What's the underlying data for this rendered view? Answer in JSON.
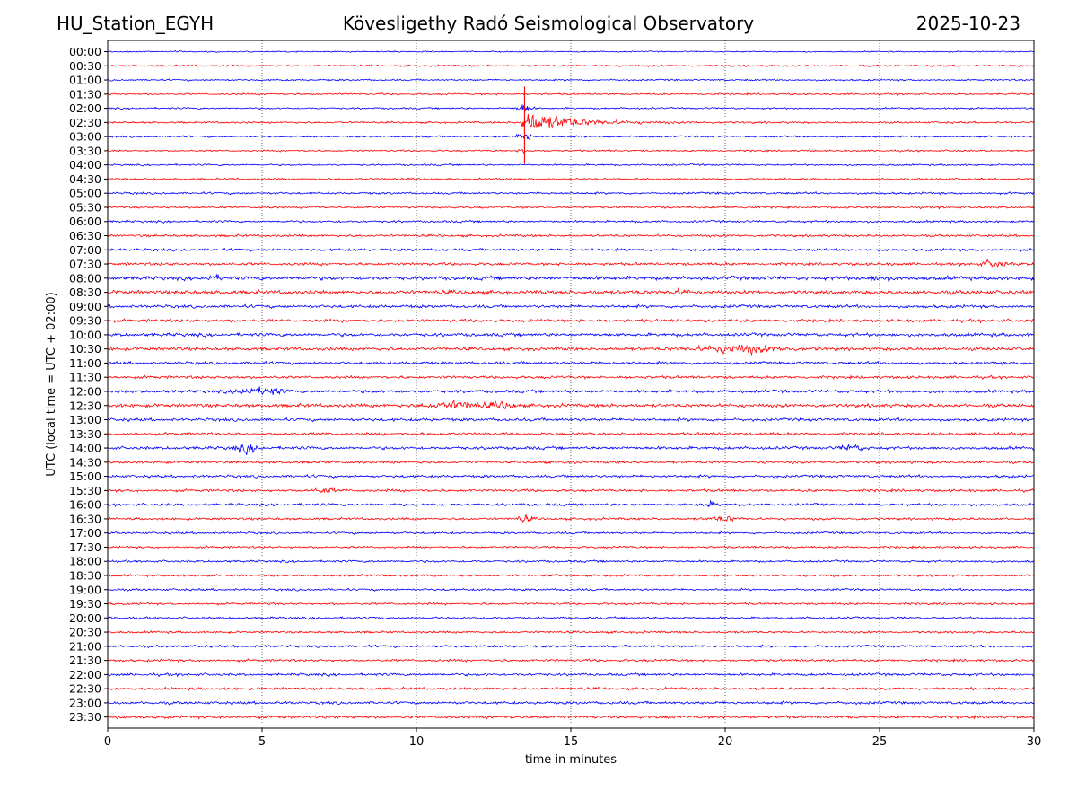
{
  "chart_data": {
    "type": "line",
    "station": "HU_Station_EGYH",
    "title": "Kövesligethy Radó Seismological Observatory",
    "date": "2025-10-23",
    "xlabel": "time in minutes",
    "ylabel": "UTC (local time = UTC + 02:00)",
    "xlim": [
      0,
      30
    ],
    "x_ticks": [
      0,
      5,
      10,
      15,
      20,
      25,
      30
    ],
    "grid": "vertical dotted at each x tick",
    "line_colors": [
      "#0000ff",
      "#ff0000"
    ],
    "row_labels": [
      "00:00",
      "00:30",
      "01:00",
      "01:30",
      "02:00",
      "02:30",
      "03:00",
      "03:30",
      "04:00",
      "04:30",
      "05:00",
      "05:30",
      "06:00",
      "06:30",
      "07:00",
      "07:30",
      "08:00",
      "08:30",
      "09:00",
      "09:30",
      "10:00",
      "10:30",
      "11:00",
      "11:30",
      "12:00",
      "12:30",
      "13:00",
      "13:30",
      "14:00",
      "14:30",
      "15:00",
      "15:30",
      "16:00",
      "16:30",
      "17:00",
      "17:30",
      "18:00",
      "18:30",
      "19:00",
      "19:30",
      "20:00",
      "20:30",
      "21:00",
      "21:30",
      "22:00",
      "22:30",
      "23:00",
      "23:30"
    ],
    "noise_levels": [
      0.6,
      0.8,
      0.8,
      0.8,
      0.8,
      0.9,
      0.8,
      0.8,
      0.8,
      0.9,
      1.0,
      1.0,
      1.0,
      1.1,
      1.2,
      1.3,
      1.8,
      1.8,
      1.4,
      1.4,
      1.5,
      1.5,
      1.3,
      1.3,
      1.4,
      1.6,
      1.4,
      1.3,
      1.4,
      1.2,
      1.2,
      1.2,
      1.2,
      1.1,
      1.0,
      1.0,
      1.0,
      1.0,
      1.0,
      1.0,
      1.0,
      1.0,
      1.1,
      1.1,
      1.2,
      1.2,
      1.3,
      1.3
    ],
    "events": [
      {
        "row": 5,
        "minute": 13.5,
        "amp": 12,
        "duration": 5.0,
        "type": "earthquake"
      },
      {
        "row": 4,
        "minute": 13.5,
        "amp": 5,
        "duration": 0.3
      },
      {
        "row": 6,
        "minute": 13.5,
        "amp": 5,
        "duration": 0.3
      },
      {
        "row": 7,
        "minute": 13.5,
        "amp": 3,
        "duration": 0.2
      },
      {
        "row": 21,
        "minute": 20.5,
        "amp": 3,
        "duration": 2.0
      },
      {
        "row": 24,
        "minute": 4.6,
        "amp": 3.5,
        "duration": 0.6
      },
      {
        "row": 24,
        "minute": 5.3,
        "amp": 3,
        "duration": 0.5
      },
      {
        "row": 25,
        "minute": 11.3,
        "amp": 3,
        "duration": 1.2
      },
      {
        "row": 25,
        "minute": 12.8,
        "amp": 2.5,
        "duration": 0.6
      },
      {
        "row": 28,
        "minute": 4.5,
        "amp": 3.5,
        "duration": 0.5
      },
      {
        "row": 28,
        "minute": 24.1,
        "amp": 2.5,
        "duration": 0.5
      },
      {
        "row": 15,
        "minute": 28.7,
        "amp": 2.5,
        "duration": 0.6
      },
      {
        "row": 16,
        "minute": 3.4,
        "amp": 2,
        "duration": 0.4
      },
      {
        "row": 16,
        "minute": 25.0,
        "amp": 2,
        "duration": 0.4
      },
      {
        "row": 17,
        "minute": 18.5,
        "amp": 2,
        "duration": 0.4
      },
      {
        "row": 31,
        "minute": 7.0,
        "amp": 2,
        "duration": 0.5
      },
      {
        "row": 32,
        "minute": 19.5,
        "amp": 2,
        "duration": 0.4
      },
      {
        "row": 33,
        "minute": 13.5,
        "amp": 2.8,
        "duration": 0.3
      },
      {
        "row": 33,
        "minute": 20.0,
        "amp": 2,
        "duration": 0.6
      }
    ]
  }
}
